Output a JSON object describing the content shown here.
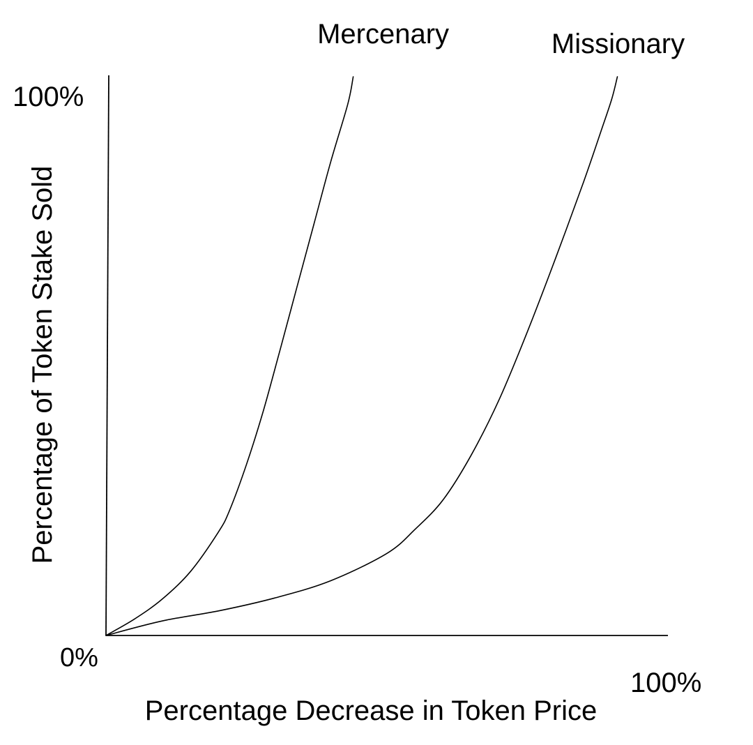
{
  "chart_data": {
    "type": "line",
    "title": "",
    "xlabel": "Percentage Decrease in Token Price",
    "ylabel": "Percentage of Token Stake Sold",
    "xlim": [
      0,
      100
    ],
    "ylim": [
      0,
      100
    ],
    "x_tick_labels": {
      "start": "0%",
      "end": "100%"
    },
    "y_tick_labels": {
      "end": "100%"
    },
    "grid": false,
    "series": [
      {
        "name": "Mercenary",
        "points": [
          [
            0,
            0
          ],
          [
            5,
            2.9
          ],
          [
            10,
            6.5
          ],
          [
            15,
            11.4
          ],
          [
            20,
            18.5
          ],
          [
            22,
            22.4
          ],
          [
            25,
            30.6
          ],
          [
            28,
            40.2
          ],
          [
            31,
            51.2
          ],
          [
            34,
            62.4
          ],
          [
            37,
            73.6
          ],
          [
            40,
            84.8
          ],
          [
            43,
            95
          ],
          [
            44,
            100
          ]
        ]
      },
      {
        "name": "Missionary",
        "points": [
          [
            0,
            0
          ],
          [
            10,
            2.6
          ],
          [
            20,
            4.4
          ],
          [
            30,
            6.7
          ],
          [
            40,
            9.8
          ],
          [
            50,
            14.7
          ],
          [
            55,
            19
          ],
          [
            60,
            24.3
          ],
          [
            65,
            32.3
          ],
          [
            70,
            42.3
          ],
          [
            75,
            54.4
          ],
          [
            80,
            67.5
          ],
          [
            85,
            81.2
          ],
          [
            88,
            90
          ],
          [
            90,
            96
          ],
          [
            91,
            100
          ]
        ]
      }
    ]
  }
}
